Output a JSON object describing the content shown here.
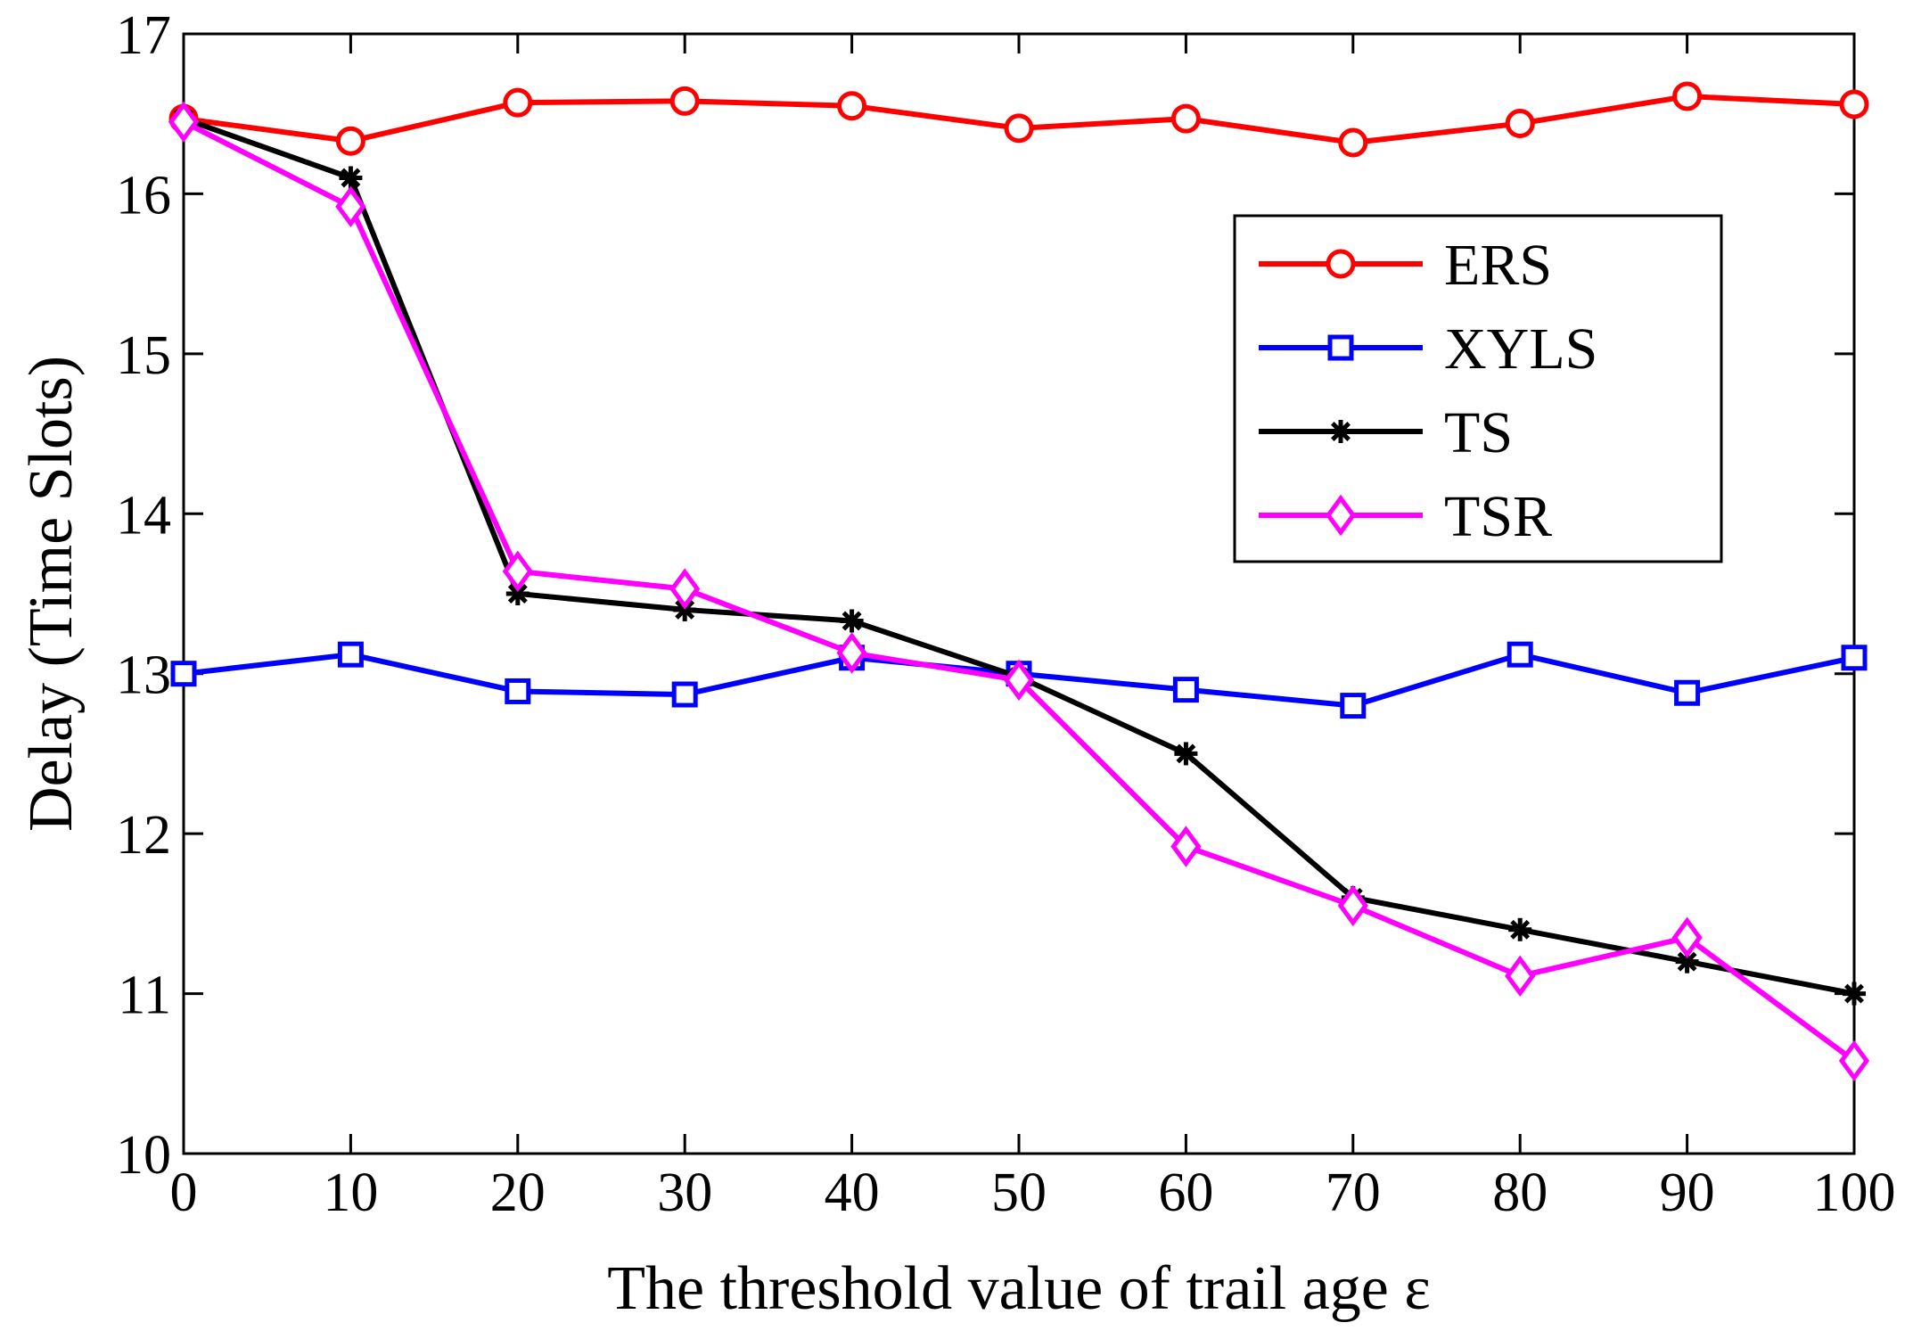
{
  "chart_data": {
    "type": "line",
    "title": "",
    "xlabel": "The threshold value of trail age ε",
    "ylabel": "Delay (Time Slots)",
    "xlim": [
      0,
      100
    ],
    "ylim": [
      10,
      17
    ],
    "xticks": [
      0,
      10,
      20,
      30,
      40,
      50,
      60,
      70,
      80,
      90,
      100
    ],
    "yticks": [
      10,
      11,
      12,
      13,
      14,
      15,
      16,
      17
    ],
    "grid": false,
    "legend_position": "top-right",
    "x": [
      0,
      10,
      20,
      30,
      40,
      50,
      60,
      70,
      80,
      90,
      100
    ],
    "series": [
      {
        "name": "ERS",
        "color": "#ff0000",
        "marker": "circle",
        "values": [
          16.47,
          16.33,
          16.57,
          16.58,
          16.55,
          16.41,
          16.47,
          16.32,
          16.44,
          16.61,
          16.56
        ]
      },
      {
        "name": "XYLS",
        "color": "#0000ff",
        "marker": "square",
        "values": [
          13.0,
          13.12,
          12.89,
          12.87,
          13.1,
          13.0,
          12.9,
          12.8,
          13.12,
          12.88,
          13.1
        ]
      },
      {
        "name": "TS",
        "color": "#000000",
        "marker": "asterisk",
        "values": [
          16.47,
          16.1,
          13.5,
          13.4,
          13.33,
          12.98,
          12.5,
          11.6,
          11.4,
          11.2,
          11.0
        ]
      },
      {
        "name": "TSR",
        "color": "#ff00ff",
        "marker": "diamond",
        "values": [
          16.45,
          15.92,
          13.64,
          13.53,
          13.13,
          12.96,
          11.92,
          11.55,
          11.11,
          11.35,
          10.58
        ]
      }
    ]
  }
}
